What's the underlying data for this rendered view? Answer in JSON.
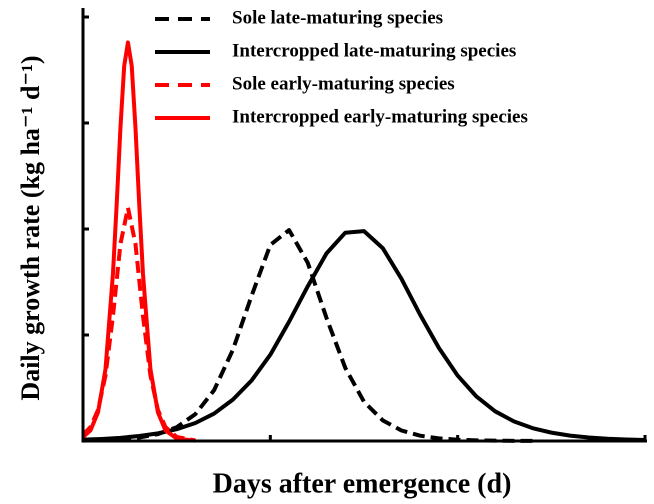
{
  "chart_data": {
    "type": "line",
    "x_label": "Days after emergence (d)",
    "y_label": "Daily growth rate (kg ha⁻¹ d⁻¹)",
    "xlim": [
      0,
      150
    ],
    "xticks": [
      0,
      50,
      100,
      150
    ],
    "ylim": [
      0,
      4
    ],
    "yticks": [
      0,
      1,
      2,
      3,
      4
    ],
    "legend": "top-right",
    "series": [
      {
        "name": "Sole late-maturing  species",
        "color": "#000000",
        "dash": true,
        "x": [
          0,
          5,
          10,
          15,
          20,
          25,
          30,
          35,
          40,
          45,
          50,
          55,
          60,
          65,
          70,
          75,
          80,
          85,
          90,
          95,
          100,
          105,
          110,
          115,
          120
        ],
        "values": [
          0.004,
          0.008,
          0.016,
          0.033,
          0.065,
          0.13,
          0.254,
          0.48,
          0.86,
          1.37,
          1.85,
          1.99,
          1.68,
          1.16,
          0.69,
          0.37,
          0.195,
          0.099,
          0.05,
          0.025,
          0.012,
          0.006,
          0.003,
          0.0015,
          0.001
        ]
      },
      {
        "name": "Intercropped late-maturing  species",
        "color": "#000000",
        "dash": false,
        "x": [
          0,
          5,
          10,
          15,
          20,
          25,
          30,
          35,
          40,
          45,
          50,
          55,
          60,
          65,
          70,
          75,
          80,
          85,
          90,
          95,
          100,
          105,
          110,
          115,
          120,
          125,
          130,
          135,
          140,
          145,
          150
        ],
        "values": [
          0.0125,
          0.0194,
          0.03,
          0.047,
          0.072,
          0.111,
          0.17,
          0.259,
          0.39,
          0.571,
          0.814,
          1.125,
          1.46,
          1.77,
          1.965,
          1.98,
          1.82,
          1.53,
          1.19,
          0.877,
          0.617,
          0.42,
          0.28,
          0.185,
          0.121,
          0.079,
          0.051,
          0.033,
          0.021,
          0.014,
          0.009
        ]
      },
      {
        "name": "Sole early-maturing species",
        "color": "#ff0000",
        "dash": true,
        "x": [
          0,
          2,
          4,
          6,
          8,
          10,
          12,
          14,
          16,
          18,
          20,
          22,
          25,
          30
        ],
        "values": [
          0.059,
          0.132,
          0.293,
          0.617,
          1.18,
          1.86,
          2.2,
          1.86,
          1.18,
          0.617,
          0.293,
          0.132,
          0.038,
          0.005
        ]
      },
      {
        "name": "Intercropped early-maturing species",
        "color": "#ff0000",
        "dash": false,
        "x": [
          0,
          2,
          4,
          6,
          8,
          9,
          10,
          11,
          12,
          13,
          14,
          15,
          16,
          18,
          20,
          22,
          25,
          30
        ],
        "values": [
          0.0372,
          0.1,
          0.27,
          0.677,
          1.58,
          2.24,
          2.96,
          3.54,
          3.76,
          3.54,
          2.96,
          2.24,
          1.58,
          0.677,
          0.27,
          0.1,
          0.023,
          0.002
        ]
      }
    ]
  }
}
